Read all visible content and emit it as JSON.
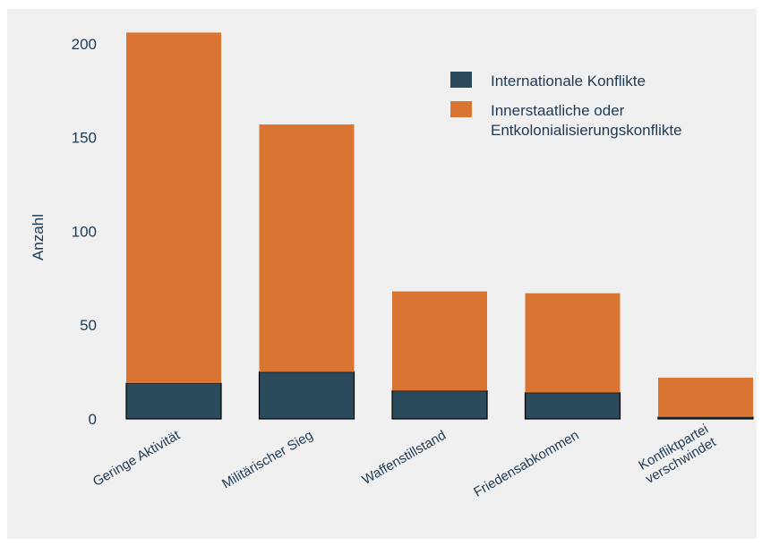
{
  "chart_data": {
    "type": "bar",
    "stacked": true,
    "ylabel": "Anzahl",
    "ylim": [
      0,
      210
    ],
    "yticks": [
      0,
      50,
      100,
      150,
      200
    ],
    "categories": [
      [
        "Geringe Aktivität"
      ],
      [
        "Militärischer Sieg"
      ],
      [
        "Waffenstillstand"
      ],
      [
        "Friedensabkommen"
      ],
      [
        "Konfliktpartei",
        "verschwindet"
      ]
    ],
    "series": [
      {
        "name": "Internationale Konflikte",
        "color": "#2b4a5c",
        "values": [
          19,
          25,
          15,
          14,
          1
        ]
      },
      {
        "name": "Innerstaatliche oder\nEntkolonialisierungskonflikte",
        "color": "#d97432",
        "values": [
          187,
          132,
          53,
          53,
          21
        ]
      }
    ],
    "legend_position": "top-right",
    "grid": false
  }
}
